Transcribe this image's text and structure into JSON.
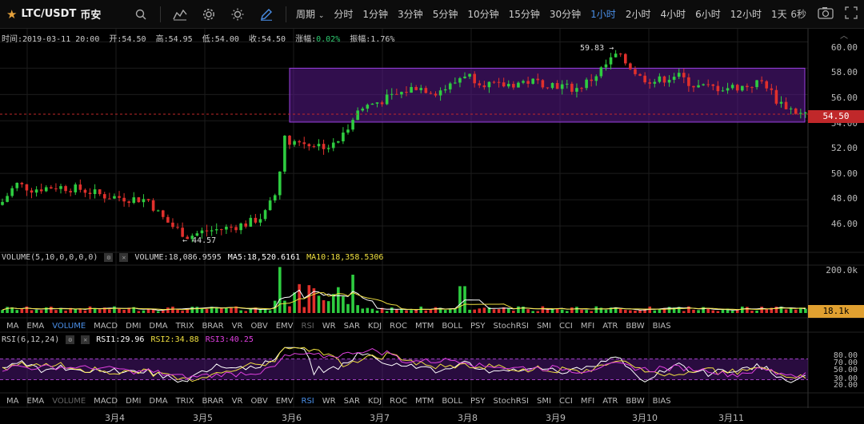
{
  "header": {
    "pair": "LTC/USDT",
    "exchange": "币安",
    "period_label": "周期",
    "intervals": [
      "分时",
      "1分钟",
      "3分钟",
      "5分钟",
      "10分钟",
      "15分钟",
      "30分钟",
      "1小时",
      "2小时",
      "4小时",
      "6小时",
      "12小时",
      "1天"
    ],
    "active_interval": "1小时",
    "countdown": "6秒"
  },
  "ohlc": {
    "time": "时间:2019-03-11 20:00",
    "open": "开:54.50",
    "high": "高:54.95",
    "low": "低:54.00",
    "close": "收:54.50",
    "change_label": "涨幅:",
    "change_value": "0.02%",
    "amplitude": "振幅:1.76%"
  },
  "price_axis": [
    "60.00",
    "58.00",
    "56.00",
    "54.00",
    "52.00",
    "50.00",
    "48.00",
    "46.00"
  ],
  "current_price": "54.50",
  "annotations": {
    "high": "59.83",
    "low": "44.57"
  },
  "volume": {
    "label": "VOLUME(5,10,0,0,0,0)",
    "volume": "VOLUME:18,086.9595",
    "ma5": "MA5:18,520.6161",
    "ma10": "MA10:18,358.5306",
    "axis_top": "200.0k",
    "current": "18.1k"
  },
  "indicators": [
    "MA",
    "EMA",
    "VOLUME",
    "MACD",
    "DMI",
    "DMA",
    "TRIX",
    "BRAR",
    "VR",
    "OBV",
    "EMV",
    "RSI",
    "WR",
    "SAR",
    "KDJ",
    "ROC",
    "MTM",
    "BOLL",
    "PSY",
    "StochRSI",
    "SMI",
    "CCI",
    "MFI",
    "ATR",
    "BBW",
    "BIAS"
  ],
  "rsi": {
    "label": "RSI(6,12,24)",
    "rsi1": "RSI1:29.96",
    "rsi2": "RSI2:34.88",
    "rsi3": "RSI3:40.25",
    "axis": [
      "80.00",
      "70.00",
      "50.00",
      "30.00",
      "20.00"
    ]
  },
  "dates": [
    "3月4",
    "3月5",
    "3月6",
    "3月7",
    "3月8",
    "3月9",
    "3月10",
    "3月11"
  ],
  "colors": {
    "up": "#2ecc40",
    "down": "#e0302c",
    "accent": "#4a8fe8",
    "box": "#5a1a8c",
    "ma5": "#ffffff",
    "ma10": "#f0e040",
    "rsi3": "#e040e0"
  }
}
